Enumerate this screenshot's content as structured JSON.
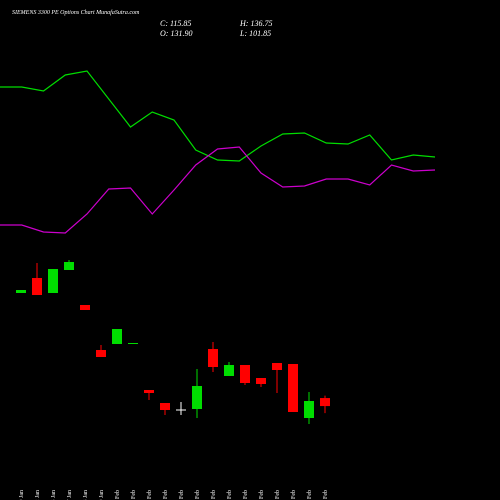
{
  "chart_data": [
    {
      "type": "line",
      "ylim": [
        250,
        450
      ],
      "series": [
        {
          "color": "#00dd00",
          "values": [
            413,
            413,
            409,
            425,
            429,
            401,
            373,
            388,
            380,
            350,
            340,
            339,
            354,
            366,
            367,
            357,
            356,
            365,
            340,
            345,
            343
          ]
        },
        {
          "color": "#cc00cc",
          "values": [
            275,
            275,
            268,
            267,
            286,
            311,
            312,
            286,
            310,
            335,
            351,
            353,
            327,
            313,
            314,
            321,
            321,
            315,
            335,
            329,
            330
          ]
        }
      ]
    },
    {
      "type": "candlestick",
      "title": "SIEMENS 3300 PE Options Chart MunafaSutra.com",
      "close_label": "C: 115.85",
      "open_label": "O: 131.90",
      "high_label": "H: 136.75",
      "low_label": "L: 101.85",
      "up_color": "#00dd00",
      "down_color": "#ff0000",
      "flat_color": "#ffffff",
      "ylim": [
        48,
        428
      ],
      "categories": [
        "19 Jan",
        "22 Jan",
        "23 Jan",
        "27 Jan",
        "28 Jan",
        "29 Jan",
        "01 Feb",
        "02 Feb",
        "03 Feb",
        "04 Feb",
        "05 Feb",
        "06 Feb",
        "09 Feb",
        "10 Feb",
        "11 Feb",
        "12 Feb",
        "13 Feb",
        "16 Feb",
        "17 Feb",
        "18 Feb"
      ],
      "open": [
        342,
        372,
        342,
        388,
        318,
        228,
        240,
        240,
        148,
        122,
        109,
        110,
        230,
        176,
        198,
        172,
        202,
        200,
        92,
        131.9
      ],
      "high": [
        348,
        402,
        390,
        408,
        318,
        238,
        270,
        242,
        148,
        122,
        124,
        190,
        244,
        204,
        198,
        172,
        202,
        200,
        144,
        136.75
      ],
      "low": [
        342,
        338,
        342,
        388,
        308,
        214,
        240,
        240,
        128,
        98,
        98,
        92,
        184,
        176,
        158,
        154,
        142,
        104,
        80,
        101.85
      ],
      "close": [
        348,
        338,
        390,
        404,
        308,
        214,
        270,
        242,
        142,
        108,
        109,
        156,
        194,
        198,
        162,
        160,
        188,
        104,
        126,
        115.85
      ]
    }
  ]
}
